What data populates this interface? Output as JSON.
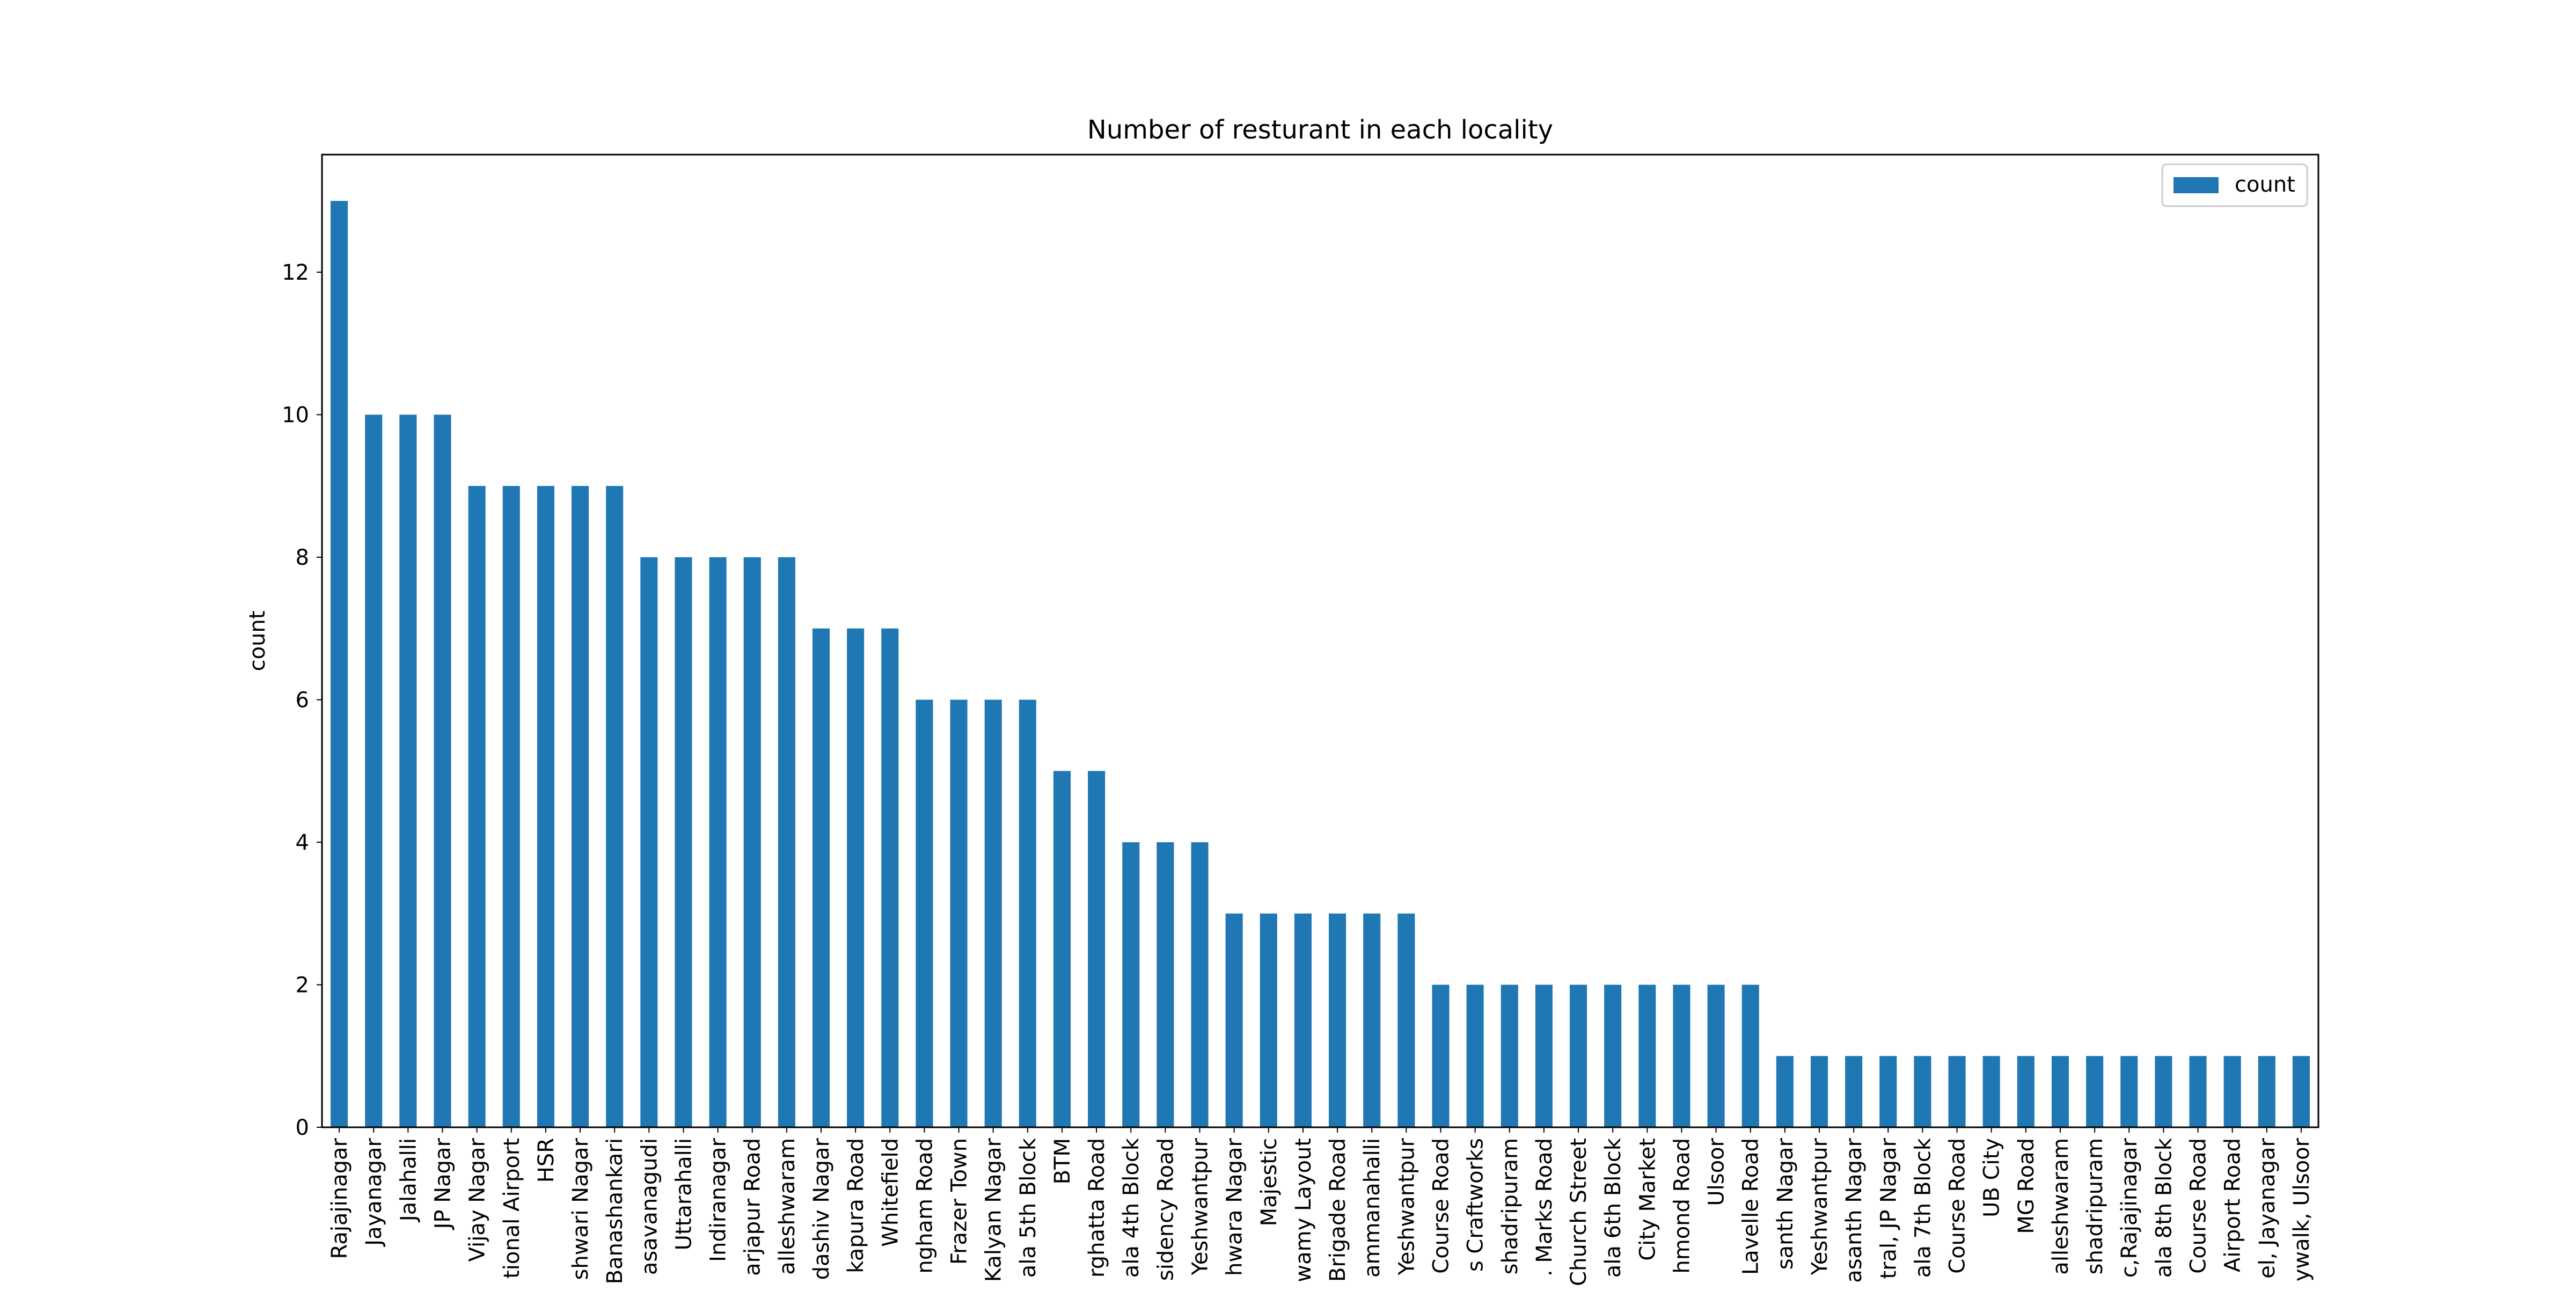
{
  "chart_data": {
    "type": "bar",
    "title": "Number of resturant in each locality",
    "xlabel": "",
    "ylabel": "count",
    "ylim": [
      0,
      13.65
    ],
    "yticks": [
      0,
      2,
      4,
      6,
      8,
      10,
      12
    ],
    "grid": false,
    "legend_position": "top-right",
    "bar_color": "#1f77b4",
    "categories": [
      "Rajajinagar",
      "Jayanagar",
      "Jalahalli",
      "JP Nagar",
      "Vijay Nagar",
      "tional Airport",
      "HSR",
      "shwari Nagar",
      "Banashankari",
      "asavanagudi",
      "Uttarahalli",
      "Indiranagar",
      "arjapur Road",
      "alleshwaram",
      "dashiv Nagar",
      "kapura Road",
      "Whitefield",
      "ngham Road",
      "Frazer Town",
      "Kalyan Nagar",
      "ala 5th Block",
      "BTM",
      "rghatta Road",
      "ala 4th Block",
      "sidency Road",
      "Yeshwantpur",
      "hwara Nagar",
      "Majestic",
      "wamy Layout",
      "Brigade Road",
      "ammanahalli",
      "Yeshwantpur",
      "Course Road",
      "s Craftworks",
      "shadripuram",
      ". Marks Road",
      "Church Street",
      "ala 6th Block",
      "City Market",
      "hmond Road",
      "Ulsoor",
      "Lavelle Road",
      "santh Nagar",
      "Yeshwantpur",
      "asanth Nagar",
      "tral, JP Nagar",
      "ala 7th Block",
      "Course Road",
      "UB City",
      "MG Road",
      "alleshwaram",
      "shadripuram",
      "c,Rajajinagar",
      "ala 8th Block",
      "Course Road",
      "Airport Road",
      "el, Jayanagar",
      "ywalk, Ulsoor"
    ],
    "series": [
      {
        "name": "count",
        "values": [
          13,
          10,
          10,
          10,
          9,
          9,
          9,
          9,
          9,
          8,
          8,
          8,
          8,
          8,
          7,
          7,
          7,
          6,
          6,
          6,
          6,
          5,
          5,
          4,
          4,
          4,
          3,
          3,
          3,
          3,
          3,
          3,
          2,
          2,
          2,
          2,
          2,
          2,
          2,
          2,
          2,
          2,
          1,
          1,
          1,
          1,
          1,
          1,
          1,
          1,
          1,
          1,
          1,
          1,
          1,
          1,
          1,
          1
        ]
      }
    ]
  }
}
